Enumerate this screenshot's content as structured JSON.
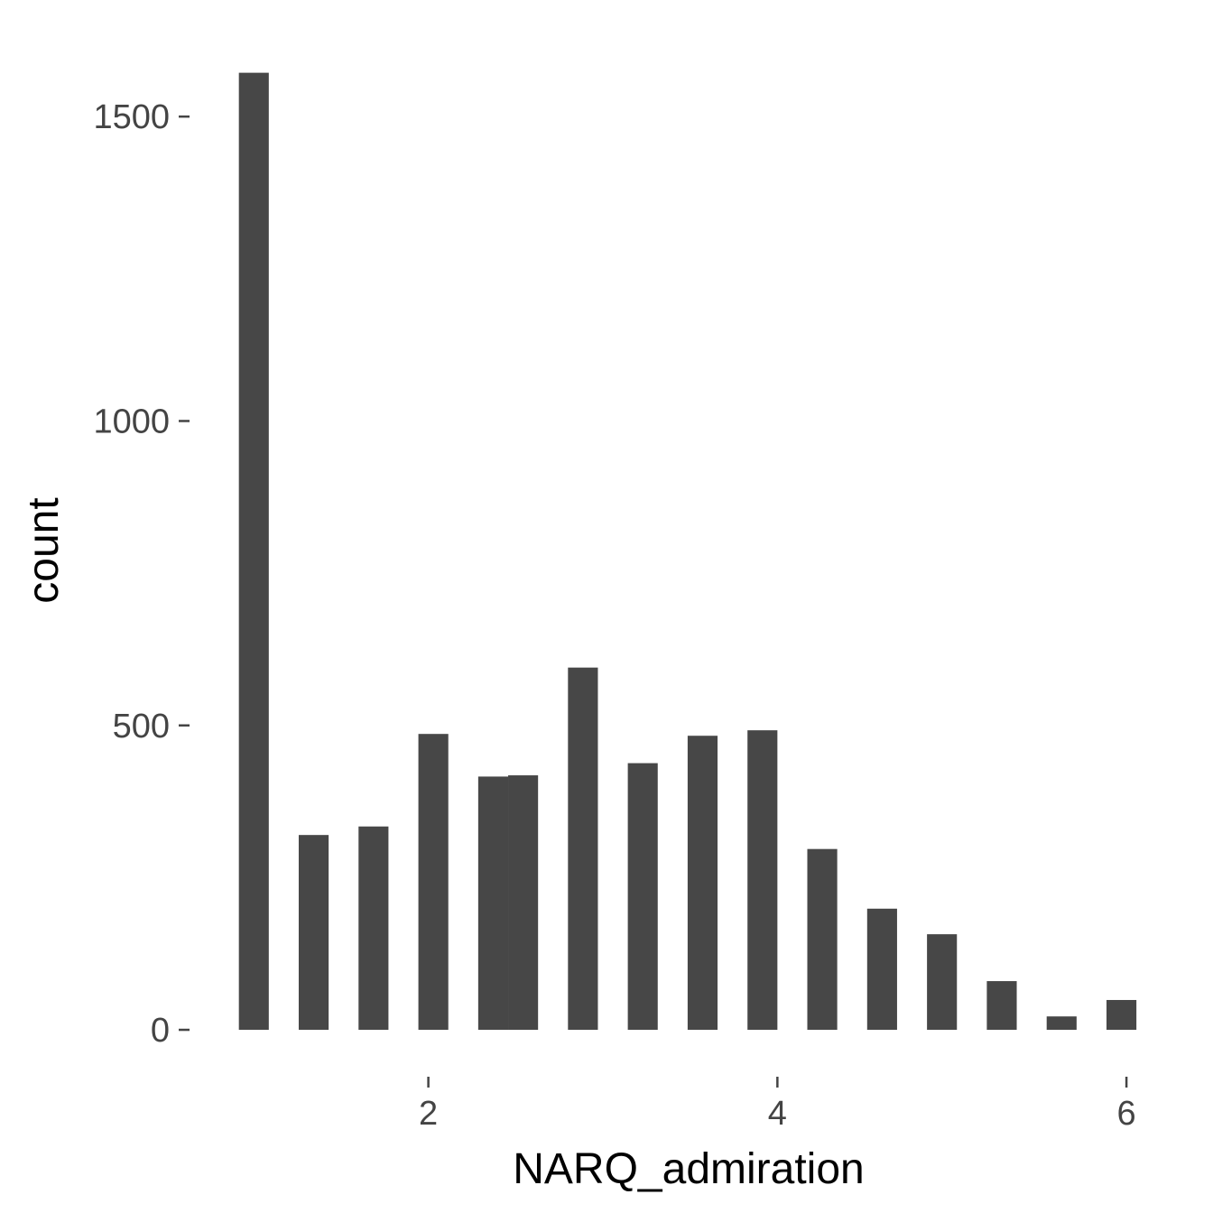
{
  "chart_data": {
    "type": "bar",
    "title": "",
    "xlabel": "NARQ_admiration",
    "ylabel": "count",
    "xlim": [
      0.735,
      6.165
    ],
    "ylim": [
      -80,
      1650
    ],
    "x_ticks": [
      "2",
      "4",
      "6"
    ],
    "y_ticks": [
      "0",
      "500",
      "1000",
      "1500"
    ],
    "grid": false,
    "bar_color": "#474747",
    "bin_width": 0.1714,
    "bins": [
      {
        "x": 1.0,
        "count": 1572
      },
      {
        "x": 1.3429,
        "count": 320
      },
      {
        "x": 1.6857,
        "count": 334
      },
      {
        "x": 2.0286,
        "count": 486
      },
      {
        "x": 2.3714,
        "count": 416
      },
      {
        "x": 2.5429,
        "count": 418
      },
      {
        "x": 2.8857,
        "count": 595
      },
      {
        "x": 3.2286,
        "count": 438
      },
      {
        "x": 3.5714,
        "count": 483
      },
      {
        "x": 3.9143,
        "count": 492
      },
      {
        "x": 4.2571,
        "count": 297
      },
      {
        "x": 4.6,
        "count": 199
      },
      {
        "x": 4.9429,
        "count": 157
      },
      {
        "x": 5.2857,
        "count": 80
      },
      {
        "x": 5.6286,
        "count": 22
      },
      {
        "x": 5.9714,
        "count": 49
      }
    ]
  }
}
